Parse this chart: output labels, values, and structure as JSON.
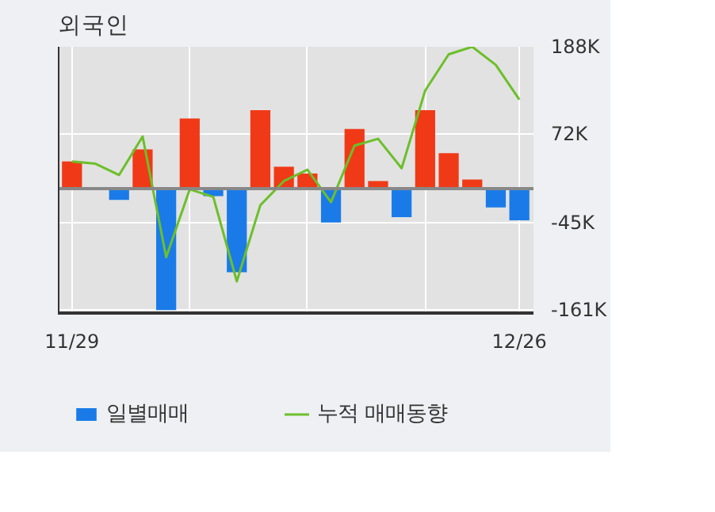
{
  "chart_data": {
    "type": "bar",
    "title": "외국인",
    "categories": [
      "11/29",
      null,
      null,
      null,
      null,
      null,
      null,
      null,
      null,
      null,
      null,
      null,
      null,
      null,
      null,
      null,
      null,
      null,
      null,
      "12/26"
    ],
    "series": [
      {
        "name": "일별매매",
        "values": [
          36,
          0,
          -15,
          52,
          -161,
          93,
          -10,
          -111,
          104,
          29,
          20,
          -45,
          79,
          10,
          -38,
          104,
          47,
          12,
          -25,
          -42
        ],
        "colors": [
          "#f03a17",
          "#f03a17",
          "#1a7be8",
          "#f03a17",
          "#1a7be8",
          "#f03a17",
          "#1a7be8",
          "#1a7be8",
          "#f03a17",
          "#f03a17",
          "#f03a17",
          "#1a7be8",
          "#f03a17",
          "#f03a17",
          "#1a7be8",
          "#f03a17",
          "#f03a17",
          "#f03a17",
          "#1a7be8",
          "#1a7be8"
        ]
      },
      {
        "name": "누적 매매동향",
        "type": "line",
        "color": "#6cbf2a",
        "values": [
          36,
          33,
          18,
          69,
          -91,
          -1,
          -11,
          -123,
          -22,
          10,
          25,
          -18,
          57,
          66,
          27,
          130,
          178,
          188,
          164,
          118
        ]
      }
    ],
    "ylim": [
      -165,
      188
    ],
    "yticks": [
      {
        "value": 188,
        "label": "188K"
      },
      {
        "value": 72,
        "label": "72K"
      },
      {
        "value": -45,
        "label": "-45K"
      },
      {
        "value": -161,
        "label": "-161K"
      }
    ],
    "grid": true,
    "legend": "bottom"
  }
}
